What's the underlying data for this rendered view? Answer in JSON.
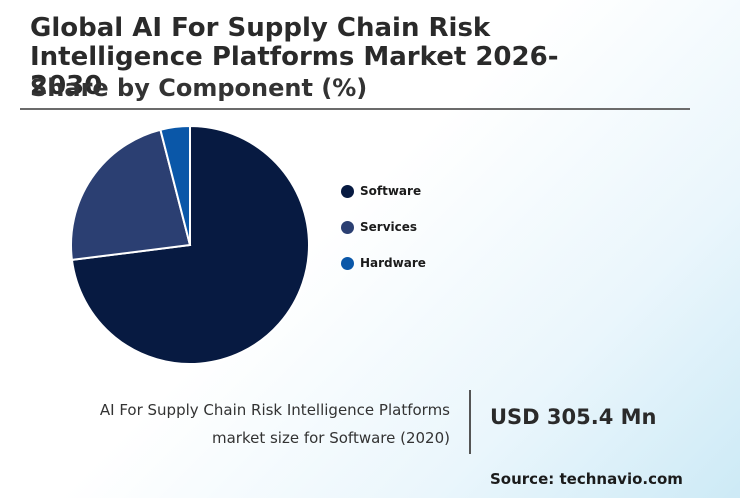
{
  "header": {
    "title": "Global AI For Supply Chain Risk Intelligence Platforms Market 2026-2030",
    "subtitle": "Share by Component (%)"
  },
  "chart_data": {
    "type": "pie",
    "categories": [
      "Software",
      "Services",
      "Hardware"
    ],
    "values": [
      73,
      23,
      4
    ],
    "colors": [
      "#071a41",
      "#2b3f72",
      "#0a57a8"
    ],
    "legend_position": "right"
  },
  "callout": {
    "text_line1": "AI For Supply Chain Risk Intelligence Platforms",
    "text_line2": "market size for Software (2020)",
    "value": "USD 305.4 Mn"
  },
  "source": "Source: technavio.com"
}
